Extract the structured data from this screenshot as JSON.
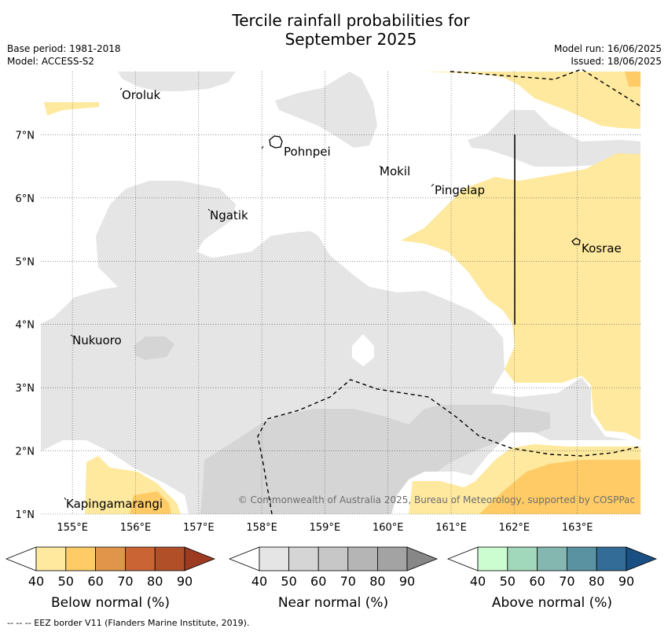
{
  "title_line1": "Tercile rainfall probabilities for",
  "title_line2": "September 2025",
  "base_period": "Base period: 1981-2018",
  "model": "Model: ACCESS-S2",
  "model_run": "Model run: 16/06/2025",
  "issued": "Issued: 18/06/2025",
  "copyright": "© Commonwealth of Australia 2025, Bureau of Meteorology, supported by COSPPac",
  "footer": "--  --  -- EEZ border V11 (Flanders Marine Institute, 2019).",
  "map": {
    "lon_range": [
      154.5,
      164.0
    ],
    "lat_range": [
      1.0,
      8.0
    ],
    "lon_ticks": [
      "155°E",
      "156°E",
      "157°E",
      "158°E",
      "159°E",
      "160°E",
      "161°E",
      "162°E",
      "163°E"
    ],
    "lat_ticks": [
      "7°N",
      "6°N",
      "5°N",
      "4°N",
      "3°N",
      "2°N",
      "1°N"
    ],
    "places": [
      "Oroluk",
      "Pohnpei",
      "Mokil",
      "Pingelap",
      "Ngatik",
      "Kosrae",
      "Nukuoro",
      "Kapingamarangi"
    ]
  },
  "colorbars": [
    {
      "label": "Below normal (%)",
      "ticks": [
        "40",
        "50",
        "60",
        "70",
        "80",
        "90"
      ],
      "colors": [
        "#ffffff",
        "#fee99e",
        "#fecb66",
        "#e0954a",
        "#cb6434",
        "#b04f28",
        "#9c3a22"
      ]
    },
    {
      "label": "Near normal (%)",
      "ticks": [
        "40",
        "50",
        "60",
        "70",
        "80",
        "90"
      ],
      "colors": [
        "#ffffff",
        "#e5e5e5",
        "#d5d5d5",
        "#c7c7c7",
        "#b5b5b5",
        "#a3a3a3",
        "#878787"
      ]
    },
    {
      "label": "Above normal (%)",
      "ticks": [
        "40",
        "50",
        "60",
        "70",
        "80",
        "90"
      ],
      "colors": [
        "#ffffff",
        "#cbfdd1",
        "#a1d8bb",
        "#84b7b0",
        "#5a92a2",
        "#326c97",
        "#1a4f84"
      ]
    }
  ]
}
